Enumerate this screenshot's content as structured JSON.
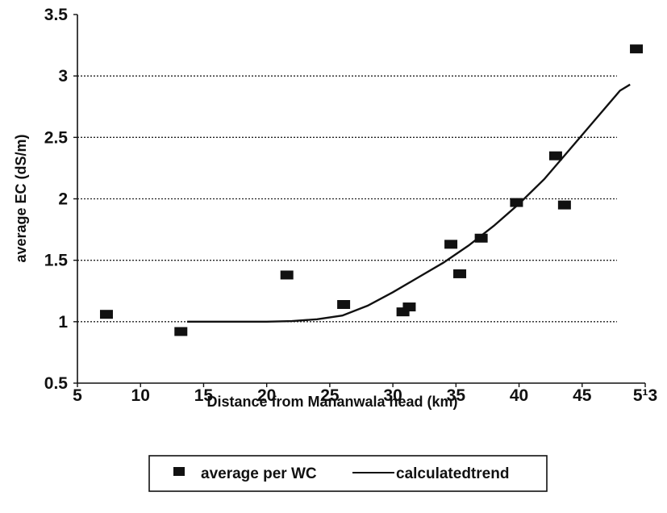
{
  "chart_data": {
    "type": "scatter",
    "title": "",
    "xlabel": "Distance from Mananwala head (km)",
    "ylabel": "average EC (dS/m)",
    "xlim": [
      5,
      50
    ],
    "ylim": [
      0.5,
      3.5
    ],
    "x_ticks": [
      "5",
      "10",
      "15",
      "20",
      "25",
      "30",
      "35",
      "40",
      "45",
      "5¹3"
    ],
    "y_ticks": [
      "0.5",
      "1",
      "1.5",
      "2",
      "2.5",
      "3",
      "3.5"
    ],
    "grid": "horizontal dotted at 1, 1.5, 2, 2.5, 3",
    "legend_position": "bottom-center",
    "series": [
      {
        "name": "average per WC",
        "type": "scatter",
        "marker": "square",
        "color": "#111111",
        "points": [
          [
            7.3,
            1.06
          ],
          [
            13.2,
            0.92
          ],
          [
            21.6,
            1.38
          ],
          [
            26.1,
            1.14
          ],
          [
            30.8,
            1.08
          ],
          [
            31.3,
            1.12
          ],
          [
            34.6,
            1.63
          ],
          [
            35.3,
            1.39
          ],
          [
            37.0,
            1.68
          ],
          [
            39.8,
            1.97
          ],
          [
            42.9,
            2.35
          ],
          [
            43.6,
            1.95
          ],
          [
            49.3,
            3.22
          ]
        ]
      },
      {
        "name": "calculatedtrend",
        "type": "line",
        "color": "#111111",
        "points": [
          [
            13.7,
            1.0
          ],
          [
            16,
            1.0
          ],
          [
            20,
            1.0
          ],
          [
            22,
            1.005
          ],
          [
            24,
            1.02
          ],
          [
            26,
            1.05
          ],
          [
            28,
            1.13
          ],
          [
            30,
            1.24
          ],
          [
            32,
            1.36
          ],
          [
            34,
            1.48
          ],
          [
            36,
            1.62
          ],
          [
            38,
            1.78
          ],
          [
            40,
            1.96
          ],
          [
            42,
            2.16
          ],
          [
            44,
            2.4
          ],
          [
            46,
            2.64
          ],
          [
            48,
            2.88
          ],
          [
            48.8,
            2.93
          ]
        ]
      }
    ]
  },
  "legend": {
    "markers_label": "average per WC",
    "line_label": "calculatedtrend"
  }
}
